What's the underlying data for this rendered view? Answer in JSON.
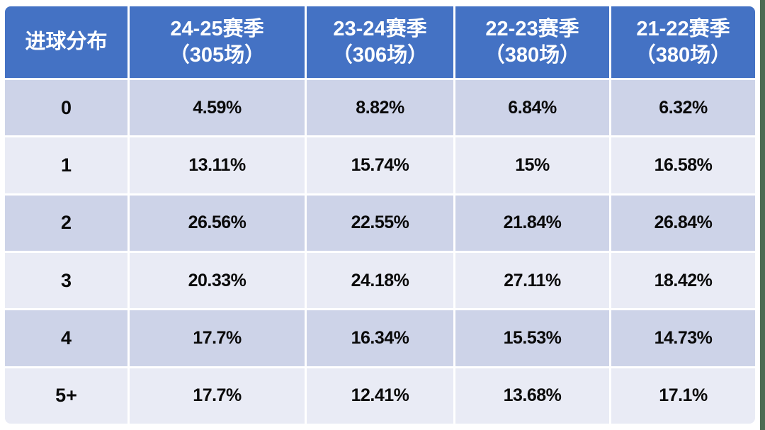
{
  "page": {
    "background_color": "#ffffff",
    "right_edge_strip_color": "#4c6b52"
  },
  "table": {
    "colors": {
      "header_bg": "#4472c4",
      "header_text": "#ffffff",
      "band_dark": "#cdd3e8",
      "band_light": "#e9ebf5",
      "cell_text": "#0a0a0a",
      "grid_gap": "#ffffff"
    },
    "header": {
      "label_column": "进球分布",
      "columns": [
        {
          "season": "24-25赛季",
          "games": "（305场）"
        },
        {
          "season": "23-24赛季",
          "games": "（306场）"
        },
        {
          "season": "22-23赛季",
          "games": "（380场）"
        },
        {
          "season": "21-22赛季",
          "games": "（380场）"
        }
      ]
    },
    "rows": [
      {
        "label": "0",
        "values": [
          "4.59%",
          "8.82%",
          "6.84%",
          "6.32%"
        ]
      },
      {
        "label": "1",
        "values": [
          "13.11%",
          "15.74%",
          "15%",
          "16.58%"
        ]
      },
      {
        "label": "2",
        "values": [
          "26.56%",
          "22.55%",
          "21.84%",
          "26.84%"
        ]
      },
      {
        "label": "3",
        "values": [
          "20.33%",
          "24.18%",
          "27.11%",
          "18.42%"
        ]
      },
      {
        "label": "4",
        "values": [
          "17.7%",
          "16.34%",
          "15.53%",
          "14.73%"
        ]
      },
      {
        "label": "5+",
        "values": [
          "17.7%",
          "12.41%",
          "13.68%",
          "17.1%"
        ]
      }
    ]
  },
  "chart_data": {
    "type": "table",
    "title": "进球分布 (Goal distribution by season)",
    "columns": [
      "进球分布",
      "24-25赛季（305场）",
      "23-24赛季（306场）",
      "22-23赛季（380场）",
      "21-22赛季（380场）"
    ],
    "row_labels": [
      "0",
      "1",
      "2",
      "3",
      "4",
      "5+"
    ],
    "series": [
      {
        "name": "24-25赛季（305场）",
        "values_percent": [
          4.59,
          13.11,
          26.56,
          20.33,
          17.7,
          17.7
        ]
      },
      {
        "name": "23-24赛季（306场）",
        "values_percent": [
          8.82,
          15.74,
          22.55,
          24.18,
          16.34,
          12.41
        ]
      },
      {
        "name": "22-23赛季（380场）",
        "values_percent": [
          6.84,
          15,
          21.84,
          27.11,
          15.53,
          13.68
        ]
      },
      {
        "name": "21-22赛季（380场）",
        "values_percent": [
          6.32,
          16.58,
          26.84,
          18.42,
          14.73,
          17.1
        ]
      }
    ],
    "layout": {
      "banded_rows": true,
      "header_fill": "#4472c4",
      "band_fills": [
        "#cdd3e8",
        "#e9ebf5"
      ]
    }
  }
}
